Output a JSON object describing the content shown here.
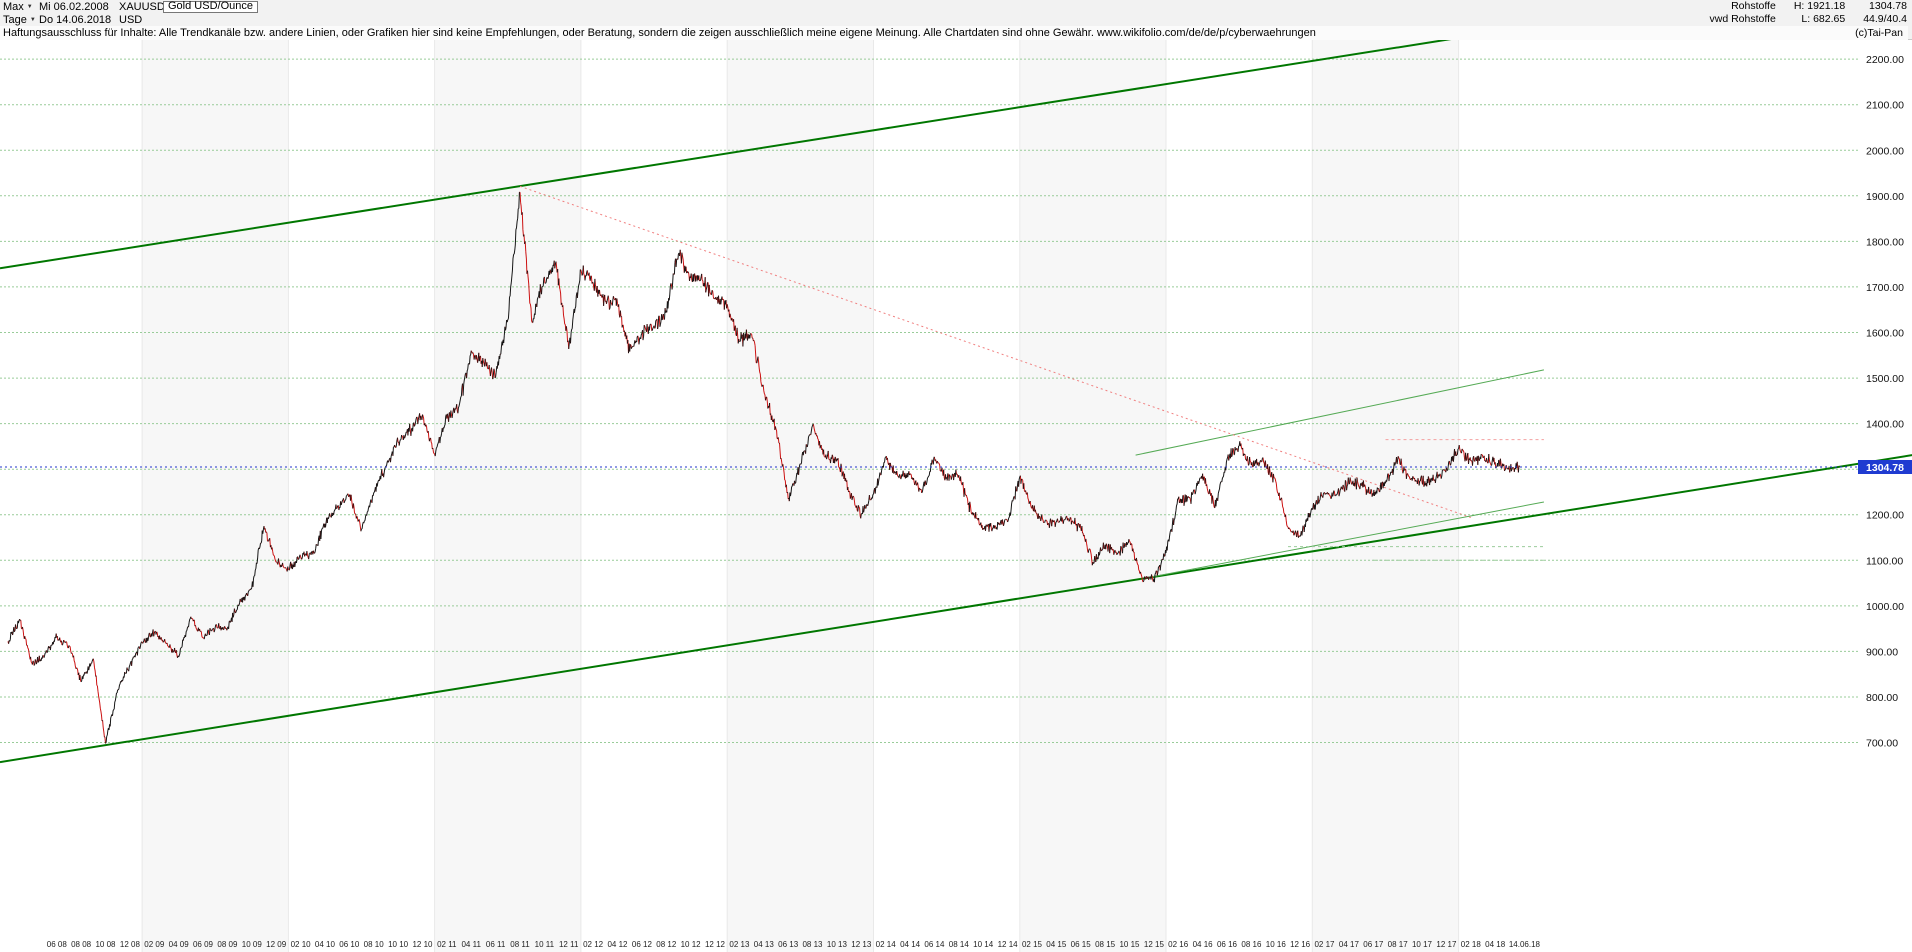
{
  "header": {
    "range_selector": "Max",
    "period_selector": "Tage",
    "start_date": "Mi 06.02.2008",
    "end_date": "Do 14.06.2018",
    "symbol": "XAUUSD",
    "currency": "USD",
    "instrument_name": "Gold USD/Ounce",
    "right": {
      "category": "Rohstoffe",
      "provider": "vwd Rohstoffe",
      "high": "H: 1921.18",
      "low": "L: 682.65",
      "last": "1304.78",
      "stat": "44.9/40.4"
    },
    "copyright": "(c)Tai-Pan",
    "disclaimer": "Haftungsausschluss für Inhalte: Alle Trendkanäle bzw. andere Linien, oder Grafiken hier sind keine Empfehlungen, oder Beratung, sondern die zeigen ausschließlich meine eigene Meinung. Alle Chartdaten sind ohne Gewähr.  www.wikifolio.com/de/de/p/cyberwaehrungen"
  },
  "y_axis": {
    "price_tag": "1304.78",
    "ticks": [
      {
        "value": 2200,
        "label": "2200.00"
      },
      {
        "value": 2100,
        "label": "2100.00"
      },
      {
        "value": 2000,
        "label": "2000.00"
      },
      {
        "value": 1900,
        "label": "1900.00"
      },
      {
        "value": 1800,
        "label": "1800.00"
      },
      {
        "value": 1700,
        "label": "1700.00"
      },
      {
        "value": 1600,
        "label": "1600.00"
      },
      {
        "value": 1500,
        "label": "1500.00"
      },
      {
        "value": 1400,
        "label": "1400.00"
      },
      {
        "value": 1300,
        "label": ""
      },
      {
        "value": 1200,
        "label": "1200.00"
      },
      {
        "value": 1100,
        "label": "1100.00"
      },
      {
        "value": 1000,
        "label": "1000.00"
      },
      {
        "value": 900,
        "label": "900.00"
      },
      {
        "value": 800,
        "label": "800.00"
      },
      {
        "value": 700,
        "label": "700.00"
      }
    ]
  },
  "x_axis": {
    "labels": [
      "06 08",
      "08 08",
      "10 08",
      "12 08",
      "02 09",
      "04 09",
      "06 09",
      "08 09",
      "10 09",
      "12 09",
      "02 10",
      "04 10",
      "06 10",
      "08 10",
      "10 10",
      "12 10",
      "02 11",
      "04 11",
      "06 11",
      "08 11",
      "10 11",
      "12 11",
      "02 12",
      "04 12",
      "06 12",
      "08 12",
      "10 12",
      "12 12",
      "02 13",
      "04 13",
      "06 13",
      "08 13",
      "10 13",
      "12 13",
      "02 14",
      "04 14",
      "06 14",
      "08 14",
      "10 14",
      "12 14",
      "02 15",
      "04 15",
      "06 15",
      "08 15",
      "10 15",
      "12 15",
      "02 16",
      "04 16",
      "06 16",
      "08 16",
      "10 16",
      "12 16",
      "02 17",
      "04 17",
      "06 17",
      "08 17",
      "10 17",
      "12 17",
      "02 18",
      "04 18"
    ],
    "first_label_month_index": 4,
    "label_step_months": 2,
    "end_label": "14.06.18",
    "end_label_month_index": 124.4
  },
  "chart_data": {
    "type": "line",
    "title": "Gold USD/Ounce (XAUUSD), Tage, Max-Zeitraum 06.02.2008 - 14.06.2018",
    "x_start": "2008-02",
    "x_end": "2018-06",
    "ylim": [
      270,
      2230
    ],
    "grid": true,
    "high": 1921.18,
    "low": 682.65,
    "last": 1304.78,
    "up_color": "#151515",
    "down_color": "#cc1111",
    "grid_color": "#99cc99",
    "stripe_color": "#f7f7f7",
    "tag_bg_color": "#1f3bd1",
    "monthly_values": [
      922,
      968,
      871,
      891,
      930,
      913,
      833,
      884,
      698,
      816,
      870,
      920,
      941,
      917,
      888,
      976,
      930,
      953,
      951,
      1007,
      1040,
      1175,
      1096,
      1081,
      1108,
      1113,
      1180,
      1215,
      1242,
      1169,
      1248,
      1307,
      1359,
      1385,
      1420,
      1333,
      1411,
      1438,
      1560,
      1536,
      1502,
      1628,
      1908,
      1622,
      1722,
      1746,
      1564,
      1737,
      1710,
      1668,
      1664,
      1558,
      1598,
      1615,
      1648,
      1772,
      1720,
      1714,
      1674,
      1662,
      1580,
      1597,
      1472,
      1388,
      1235,
      1312,
      1395,
      1328,
      1323,
      1252,
      1202,
      1245,
      1326,
      1284,
      1290,
      1250,
      1327,
      1282,
      1287,
      1208,
      1171,
      1175,
      1184,
      1283,
      1214,
      1184,
      1184,
      1190,
      1171,
      1096,
      1134,
      1114,
      1142,
      1065,
      1060,
      1116,
      1234,
      1233,
      1290,
      1215,
      1322,
      1351,
      1309,
      1316,
      1273,
      1173,
      1152,
      1211,
      1249,
      1244,
      1268,
      1269,
      1242,
      1269,
      1321,
      1280,
      1271,
      1275,
      1303,
      1345,
      1318,
      1325,
      1315,
      1300,
      1304.78
    ],
    "lines": [
      {
        "name": "upper-trend-channel",
        "m1": -0.66,
        "p1": 1741,
        "m2": 156.2,
        "p2": 2404,
        "color": "#007700",
        "width": 2,
        "dash": ""
      },
      {
        "name": "lower-trend-channel",
        "m1": -0.66,
        "p1": 657,
        "m2": 156.2,
        "p2": 1331,
        "color": "#007700",
        "width": 2,
        "dash": ""
      },
      {
        "name": "inner-rising-resistance",
        "m1": 92.5,
        "p1": 1331,
        "m2": 126,
        "p2": 1518,
        "color": "#55aa55",
        "width": 1,
        "dash": ""
      },
      {
        "name": "inner-rising-support",
        "m1": 93.3,
        "p1": 1061,
        "m2": 126,
        "p2": 1228,
        "color": "#55aa55",
        "width": 1,
        "dash": ""
      },
      {
        "name": "downtrend-from-alltime-high",
        "m1": 42,
        "p1": 1921,
        "m2": 120,
        "p2": 1194,
        "color": "#f08080",
        "width": 1,
        "dash": "2,3"
      },
      {
        "name": "resistance-level-1365",
        "m1": 113,
        "p1": 1365,
        "m2": 126,
        "p2": 1365,
        "color": "#f4a0a0",
        "width": 1,
        "dash": "3,3"
      },
      {
        "name": "support-level-1130",
        "m1": 105,
        "p1": 1130,
        "m2": 126,
        "p2": 1130,
        "color": "#9ccc9c",
        "width": 1,
        "dash": "3,3"
      },
      {
        "name": "support-level-1100",
        "m1": 112,
        "p1": 1100,
        "m2": 126,
        "p2": 1100,
        "color": "#9ccc9c",
        "width": 1,
        "dash": "3,3"
      },
      {
        "name": "last-price-line",
        "m1": -0.66,
        "p1": 1304.78,
        "m2": 151.8,
        "p2": 1304.78,
        "color": "#2233cc",
        "width": 1,
        "dash": "2,3"
      }
    ]
  }
}
